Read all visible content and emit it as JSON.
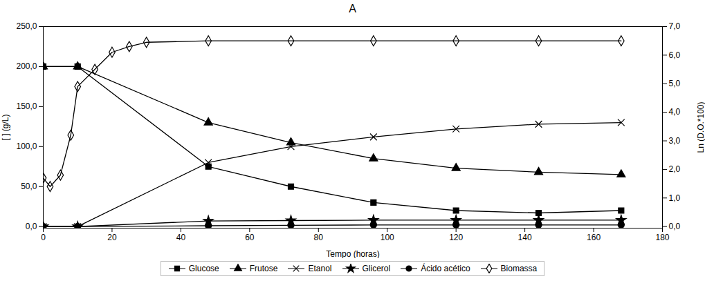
{
  "chart_data": {
    "type": "line",
    "title": "A",
    "xlabel": "Tempo (horas)",
    "ylabel": "[ ] (g/L)",
    "y2label": "Ln (D.O.*100)",
    "xlim": [
      0,
      180
    ],
    "ylim": [
      -2,
      250
    ],
    "y2lim": [
      -0.056,
      7.0
    ],
    "xticks": [
      0,
      20,
      40,
      60,
      80,
      100,
      120,
      140,
      160,
      180
    ],
    "yticks": [
      {
        "value": 0,
        "label": "0,0"
      },
      {
        "value": 50,
        "label": "50,0"
      },
      {
        "value": 100,
        "label": "100,0"
      },
      {
        "value": 150,
        "label": "150,0"
      },
      {
        "value": 200,
        "label": "200,0"
      },
      {
        "value": 250,
        "label": "250,0"
      }
    ],
    "y2ticks": [
      {
        "value": 0,
        "label": "0,0"
      },
      {
        "value": 1,
        "label": "1,0"
      },
      {
        "value": 2,
        "label": "2,0"
      },
      {
        "value": 3,
        "label": "3,0"
      },
      {
        "value": 4,
        "label": "4,0"
      },
      {
        "value": 5,
        "label": "5,0"
      },
      {
        "value": 6,
        "label": "6,0"
      },
      {
        "value": 7,
        "label": "7,0"
      }
    ],
    "grid": false,
    "legend": "bottom",
    "series": [
      {
        "name": "Glucose",
        "color": "#000000",
        "marker": "square",
        "x": [
          0,
          10,
          48,
          72,
          96,
          120,
          144,
          168
        ],
        "values": [
          200.0,
          200.0,
          75.0,
          50.0,
          30.0,
          20.0,
          17.0,
          20.0
        ]
      },
      {
        "name": "Frutose",
        "color": "#000000",
        "marker": "triangle",
        "x": [
          0,
          10,
          48,
          72,
          96,
          120,
          144,
          168
        ],
        "values": [
          200.0,
          200.0,
          130.0,
          105.0,
          85.0,
          73.0,
          68.0,
          65.0
        ]
      },
      {
        "name": "Etanol",
        "color": "#000000",
        "marker": "times",
        "x": [
          0,
          10,
          48,
          72,
          96,
          120,
          144,
          168
        ],
        "values": [
          0.0,
          0.0,
          80.0,
          100.0,
          112.0,
          122.0,
          128.0,
          130.0
        ]
      },
      {
        "name": "Glicerol",
        "color": "#000000",
        "marker": "star",
        "x": [
          0,
          10,
          48,
          72,
          96,
          120,
          144,
          168
        ],
        "values": [
          0.0,
          0.0,
          7.0,
          7.5,
          8.0,
          8.0,
          8.0,
          8.0
        ]
      },
      {
        "name": "Ácido acético",
        "color": "#000000",
        "marker": "circle",
        "x": [
          0,
          10,
          48,
          72,
          96,
          120,
          144,
          168
        ],
        "values": [
          0.0,
          0.0,
          1.0,
          1.5,
          2.0,
          2.0,
          2.0,
          2.0
        ]
      },
      {
        "name": "Biomassa",
        "color": "#000000",
        "marker": "diamond-open",
        "axis": "y2",
        "x": [
          0,
          2,
          5,
          8,
          10,
          15,
          20,
          25,
          30,
          48,
          72,
          96,
          120,
          144,
          168
        ],
        "values": [
          1.7,
          1.4,
          1.8,
          3.2,
          4.9,
          5.5,
          6.1,
          6.3,
          6.45,
          6.5,
          6.5,
          6.5,
          6.5,
          6.5,
          6.5
        ]
      }
    ]
  }
}
